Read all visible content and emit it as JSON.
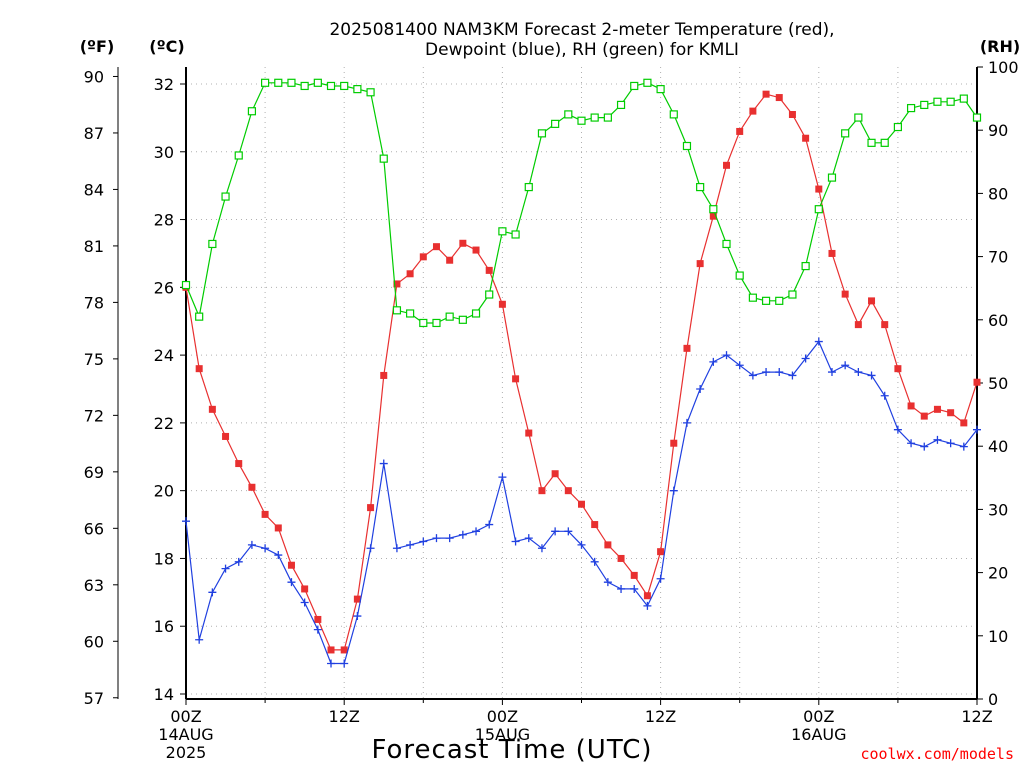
{
  "title_line1": "2025081400 NAM3KM Forecast 2-meter Temperature (red),",
  "title_line2": "Dewpoint (blue), RH (green) for KMLI",
  "unit_f": "(ºF)",
  "unit_c": "(ºC)",
  "unit_rh": "(RH)",
  "x_axis_label": "Forecast Time (UTC)",
  "credit": "coolwx.com/models",
  "colors": {
    "temperature": "#e83030",
    "dewpoint": "#2040e0",
    "rh": "#00cc00",
    "axis": "#000000",
    "grid": "#b0b0b0",
    "credit": "#ff0000"
  },
  "chart_data": {
    "type": "line",
    "title": "2025081400 NAM3KM Forecast 2-meter Temperature (red), Dewpoint (blue), RH (green) for KMLI",
    "xlabel": "Forecast Time (UTC)",
    "x_hours": [
      0,
      1,
      2,
      3,
      4,
      5,
      6,
      7,
      8,
      9,
      10,
      11,
      12,
      13,
      14,
      15,
      16,
      17,
      18,
      19,
      20,
      21,
      22,
      23,
      24,
      25,
      26,
      27,
      28,
      29,
      30,
      31,
      32,
      33,
      34,
      35,
      36,
      37,
      38,
      39,
      40,
      41,
      42,
      43,
      44,
      45,
      46,
      47,
      48,
      49,
      50,
      51,
      52,
      53,
      54,
      55,
      56,
      57,
      58,
      59,
      60
    ],
    "x_tick_labels": [
      {
        "hour": 0,
        "lines": [
          "00Z",
          "14AUG",
          "2025"
        ]
      },
      {
        "hour": 12,
        "lines": [
          "12Z"
        ]
      },
      {
        "hour": 24,
        "lines": [
          "00Z",
          "15AUG"
        ]
      },
      {
        "hour": 36,
        "lines": [
          "12Z"
        ]
      },
      {
        "hour": 48,
        "lines": [
          "00Z",
          "16AUG"
        ]
      },
      {
        "hour": 60,
        "lines": [
          "12Z"
        ]
      }
    ],
    "xlim": [
      0,
      60
    ],
    "y_left_celsius": {
      "ylim": [
        14,
        32.2
      ],
      "ticks": [
        "32",
        "30",
        "28",
        "26",
        "24",
        "22",
        "20",
        "18",
        "16",
        "14"
      ]
    },
    "y_left_fahrenheit": {
      "ticks": [
        "90",
        "87",
        "84",
        "81",
        "78",
        "75",
        "72",
        "69",
        "66",
        "63",
        "60",
        "57"
      ]
    },
    "y_right_rh": {
      "ylim": [
        0,
        100
      ],
      "ticks": [
        "100",
        "90",
        "80",
        "70",
        "60",
        "50",
        "40",
        "30",
        "20",
        "10",
        "0"
      ]
    },
    "grid": true,
    "series": [
      {
        "name": "Temperature",
        "axis": "celsius",
        "marker": "filled-square",
        "values": [
          26.0,
          23.6,
          22.4,
          21.6,
          20.8,
          20.1,
          19.3,
          18.9,
          17.8,
          17.1,
          16.2,
          15.3,
          15.3,
          16.8,
          19.5,
          23.4,
          26.1,
          26.4,
          26.9,
          27.2,
          26.8,
          27.3,
          27.1,
          26.5,
          25.5,
          23.3,
          21.7,
          20.0,
          20.5,
          20.0,
          19.6,
          19.0,
          18.4,
          18.0,
          17.5,
          16.9,
          18.2,
          21.4,
          24.2,
          26.7,
          28.1,
          29.6,
          30.6,
          31.2,
          31.7,
          31.6,
          31.1,
          30.4,
          28.9,
          27.0,
          25.8,
          24.9,
          25.6,
          24.9,
          23.6,
          22.5,
          22.2,
          22.4,
          22.3,
          22.0,
          23.2
        ]
      },
      {
        "name": "Dewpoint",
        "axis": "celsius",
        "marker": "plus",
        "values": [
          19.1,
          15.6,
          17.0,
          17.7,
          17.9,
          18.4,
          18.3,
          18.1,
          17.3,
          16.7,
          15.9,
          14.9,
          14.9,
          16.3,
          18.3,
          20.8,
          18.3,
          18.4,
          18.5,
          18.6,
          18.6,
          18.7,
          18.8,
          19.0,
          20.4,
          18.5,
          18.6,
          18.3,
          18.8,
          18.8,
          18.4,
          17.9,
          17.3,
          17.1,
          17.1,
          16.6,
          17.4,
          20.0,
          22.0,
          23.0,
          23.8,
          24.0,
          23.7,
          23.4,
          23.5,
          23.5,
          23.4,
          23.9,
          24.4,
          23.5,
          23.7,
          23.5,
          23.4,
          22.8,
          21.8,
          21.4,
          21.3,
          21.5,
          21.4,
          21.3,
          21.8
        ]
      },
      {
        "name": "RH",
        "axis": "rh",
        "marker": "open-square",
        "values": [
          65.5,
          60.5,
          72,
          79.5,
          86,
          93,
          97.5,
          97.5,
          97.5,
          97,
          97.5,
          97,
          97,
          96.5,
          96,
          85.5,
          61.5,
          61,
          59.5,
          59.5,
          60.5,
          60,
          61,
          64,
          74,
          73.5,
          81,
          89.5,
          91,
          92.5,
          91.5,
          92,
          92,
          94,
          97,
          97.5,
          96.5,
          92.5,
          87.5,
          81,
          77.5,
          72,
          67,
          63.5,
          63,
          63,
          64,
          68.5,
          77.5,
          82.5,
          89.5,
          92,
          88,
          88,
          90.5,
          93.5,
          94,
          94.5,
          94.5,
          95,
          92
        ]
      }
    ]
  }
}
